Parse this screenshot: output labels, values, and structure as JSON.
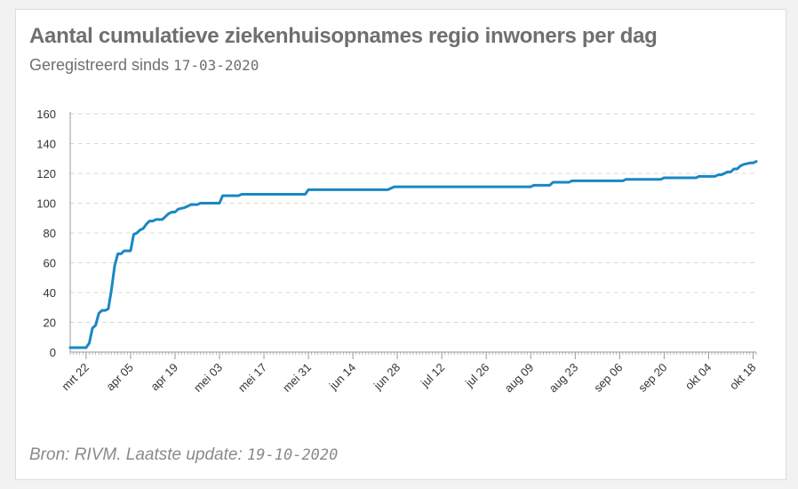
{
  "title": "Aantal cumulatieve ziekenhuisopnames regio inwoners per dag",
  "subtitle_prefix": "Geregistreerd sinds",
  "subtitle_date": "17-03-2020",
  "source_prefix": "Bron: RIVM. Laatste update:",
  "source_date": "19-10-2020",
  "colors": {
    "line": "#1a87c2",
    "grid": "#d9d9d9",
    "axis": "#999999",
    "text": "#6f6f6f"
  },
  "chart_data": {
    "type": "line",
    "title": "Aantal cumulatieve ziekenhuisopnames regio inwoners per dag",
    "xlabel": "",
    "ylabel": "",
    "ylim": [
      0,
      160
    ],
    "xlim": [
      "2020-03-17",
      "2020-10-19"
    ],
    "grid": true,
    "yticks": [
      0,
      20,
      40,
      60,
      80,
      100,
      120,
      140,
      160
    ],
    "xticks": [
      {
        "date": "2020-03-22",
        "label": "mrt 22"
      },
      {
        "date": "2020-04-05",
        "label": "apr 05"
      },
      {
        "date": "2020-04-19",
        "label": "apr 19"
      },
      {
        "date": "2020-05-03",
        "label": "mei 03"
      },
      {
        "date": "2020-05-17",
        "label": "mei 17"
      },
      {
        "date": "2020-05-31",
        "label": "mei 31"
      },
      {
        "date": "2020-06-14",
        "label": "jun 14"
      },
      {
        "date": "2020-06-28",
        "label": "jun 28"
      },
      {
        "date": "2020-07-12",
        "label": "jul 12"
      },
      {
        "date": "2020-07-26",
        "label": "jul 26"
      },
      {
        "date": "2020-08-09",
        "label": "aug 09"
      },
      {
        "date": "2020-08-23",
        "label": "aug 23"
      },
      {
        "date": "2020-09-06",
        "label": "sep 06"
      },
      {
        "date": "2020-09-20",
        "label": "sep 20"
      },
      {
        "date": "2020-10-04",
        "label": "okt 04"
      },
      {
        "date": "2020-10-18",
        "label": "okt 18"
      }
    ],
    "series": [
      {
        "points": [
          [
            "2020-03-17",
            3
          ],
          [
            "2020-03-22",
            3
          ],
          [
            "2020-03-23",
            6
          ],
          [
            "2020-03-24",
            16
          ],
          [
            "2020-03-25",
            18
          ],
          [
            "2020-03-26",
            26
          ],
          [
            "2020-03-27",
            28
          ],
          [
            "2020-03-28",
            28
          ],
          [
            "2020-03-29",
            29
          ],
          [
            "2020-03-30",
            42
          ],
          [
            "2020-03-31",
            58
          ],
          [
            "2020-04-01",
            66
          ],
          [
            "2020-04-02",
            66
          ],
          [
            "2020-04-03",
            68
          ],
          [
            "2020-04-05",
            68
          ],
          [
            "2020-04-06",
            79
          ],
          [
            "2020-04-07",
            80
          ],
          [
            "2020-04-08",
            82
          ],
          [
            "2020-04-09",
            83
          ],
          [
            "2020-04-10",
            86
          ],
          [
            "2020-04-11",
            88
          ],
          [
            "2020-04-12",
            88
          ],
          [
            "2020-04-13",
            89
          ],
          [
            "2020-04-15",
            89
          ],
          [
            "2020-04-16",
            91
          ],
          [
            "2020-04-17",
            93
          ],
          [
            "2020-04-18",
            94
          ],
          [
            "2020-04-19",
            94
          ],
          [
            "2020-04-20",
            96
          ],
          [
            "2020-04-22",
            97
          ],
          [
            "2020-04-23",
            98
          ],
          [
            "2020-04-24",
            99
          ],
          [
            "2020-04-26",
            99
          ],
          [
            "2020-04-27",
            100
          ],
          [
            "2020-05-03",
            100
          ],
          [
            "2020-05-04",
            105
          ],
          [
            "2020-05-09",
            105
          ],
          [
            "2020-05-10",
            106
          ],
          [
            "2020-05-30",
            106
          ],
          [
            "2020-05-31",
            109
          ],
          [
            "2020-06-25",
            109
          ],
          [
            "2020-06-26",
            110
          ],
          [
            "2020-06-27",
            111
          ],
          [
            "2020-08-09",
            111
          ],
          [
            "2020-08-10",
            112
          ],
          [
            "2020-08-15",
            112
          ],
          [
            "2020-08-16",
            114
          ],
          [
            "2020-08-21",
            114
          ],
          [
            "2020-08-22",
            115
          ],
          [
            "2020-09-07",
            115
          ],
          [
            "2020-09-08",
            116
          ],
          [
            "2020-09-19",
            116
          ],
          [
            "2020-09-20",
            117
          ],
          [
            "2020-09-30",
            117
          ],
          [
            "2020-10-01",
            118
          ],
          [
            "2020-10-06",
            118
          ],
          [
            "2020-10-07",
            119
          ],
          [
            "2020-10-08",
            119
          ],
          [
            "2020-10-09",
            120
          ],
          [
            "2020-10-10",
            121
          ],
          [
            "2020-10-11",
            121
          ],
          [
            "2020-10-12",
            123
          ],
          [
            "2020-10-13",
            123
          ],
          [
            "2020-10-14",
            125
          ],
          [
            "2020-10-15",
            126
          ],
          [
            "2020-10-17",
            127
          ],
          [
            "2020-10-18",
            127
          ],
          [
            "2020-10-19",
            128
          ]
        ]
      }
    ]
  }
}
